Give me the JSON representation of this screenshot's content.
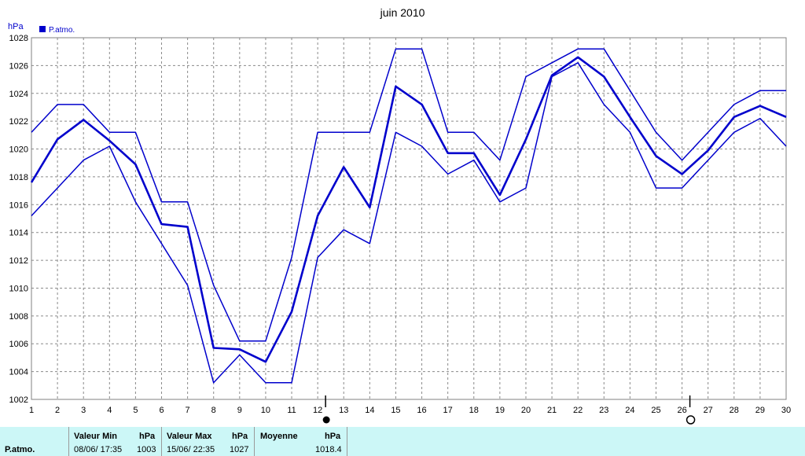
{
  "chart_data": {
    "type": "line",
    "title": "juin 2010",
    "ylabel": "hPa",
    "legend": {
      "label": "P.atmo.",
      "color": "#0000cc",
      "placement": "top-left"
    },
    "ylim": [
      1002,
      1028
    ],
    "yticks": [
      1002,
      1004,
      1006,
      1008,
      1010,
      1012,
      1014,
      1016,
      1018,
      1020,
      1022,
      1024,
      1026,
      1028
    ],
    "x": [
      1,
      2,
      3,
      4,
      5,
      6,
      7,
      8,
      9,
      10,
      11,
      12,
      13,
      14,
      15,
      16,
      17,
      18,
      19,
      20,
      21,
      22,
      23,
      24,
      25,
      26,
      27,
      28,
      29,
      30
    ],
    "grid": true,
    "series": [
      {
        "role": "max",
        "values": [
          1021.2,
          1023.2,
          1023.2,
          1021.2,
          1021.2,
          1016.2,
          1016.2,
          1010.2,
          1006.2,
          1006.2,
          1012.2,
          1021.2,
          1021.2,
          1021.2,
          1027.2,
          1027.2,
          1021.2,
          1021.2,
          1019.2,
          1025.2,
          1026.2,
          1027.2,
          1027.2,
          1024.2,
          1021.2,
          1019.2,
          1021.2,
          1023.2,
          1024.2,
          1024.2
        ]
      },
      {
        "role": "mean",
        "values": [
          1017.6,
          1020.7,
          1022.1,
          1020.6,
          1018.9,
          1014.6,
          1014.4,
          1005.7,
          1005.6,
          1004.7,
          1008.3,
          1015.2,
          1018.7,
          1015.8,
          1024.5,
          1023.2,
          1019.7,
          1019.7,
          1016.7,
          1020.7,
          1025.3,
          1026.6,
          1025.2,
          1022.3,
          1019.5,
          1018.2,
          1019.9,
          1022.3,
          1023.1,
          1022.3
        ]
      },
      {
        "role": "min",
        "values": [
          1015.2,
          1017.2,
          1019.2,
          1020.2,
          1016.2,
          1013.2,
          1010.2,
          1003.2,
          1005.2,
          1003.2,
          1003.2,
          1012.2,
          1014.2,
          1013.2,
          1021.2,
          1020.2,
          1018.2,
          1019.2,
          1016.2,
          1017.2,
          1025.2,
          1026.2,
          1023.2,
          1021.2,
          1017.2,
          1017.2,
          1019.2,
          1021.2,
          1022.2,
          1020.2
        ]
      }
    ],
    "moon_phases": [
      {
        "day": 12,
        "phase": "new-moon"
      },
      {
        "day": 26,
        "phase": "full-moon"
      }
    ],
    "line_color": "#0000cc"
  },
  "footer": {
    "row_label": "P.atmo.",
    "min": {
      "header": "Valeur Min",
      "unit": "hPa",
      "date": "08/06/  17:35",
      "value": "1003"
    },
    "max": {
      "header": "Valeur Max",
      "unit": "hPa",
      "date": "15/06/  22:35",
      "value": "1027"
    },
    "mean": {
      "header": "Moyenne",
      "unit": "hPa",
      "value": "1018.4"
    }
  }
}
